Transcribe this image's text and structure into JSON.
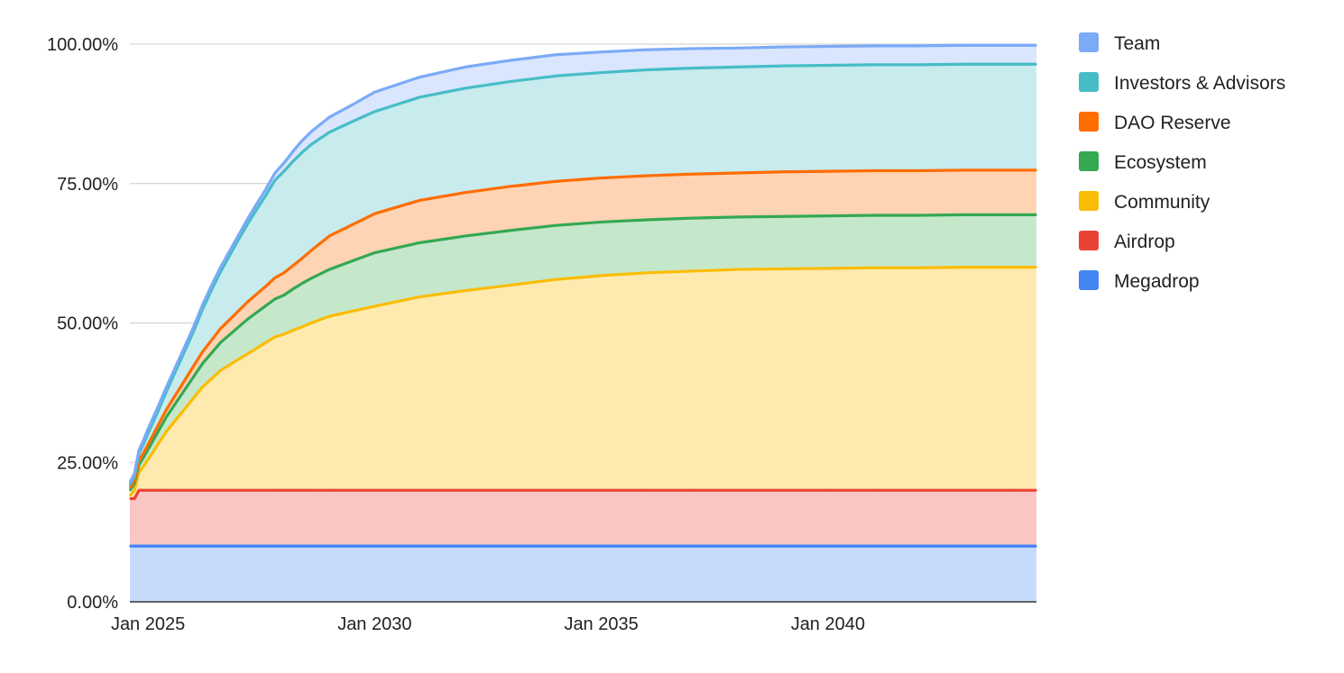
{
  "chart_data": {
    "type": "area",
    "stacked": true,
    "title": "",
    "xlabel": "",
    "ylabel": "",
    "x": [
      2024.6,
      2024.7,
      2024.8,
      2024.9,
      2025.0,
      2025.2,
      2025.4,
      2025.6,
      2025.8,
      2026.0,
      2026.2,
      2026.4,
      2026.6,
      2026.8,
      2027.0,
      2027.2,
      2027.4,
      2027.6,
      2027.8,
      2028.0,
      2028.2,
      2028.4,
      2028.6,
      2028.8,
      2029.0,
      2029.5,
      2030.0,
      2031.0,
      2032.0,
      2033.0,
      2034.0,
      2035.0,
      2036.0,
      2037.0,
      2038.0,
      2039.0,
      2040.0,
      2041.0,
      2042.0,
      2043.0,
      2044.0,
      2044.6
    ],
    "series": [
      {
        "name": "Megadrop",
        "color": "#4285f4",
        "fill": "#c6dafc",
        "values": [
          10,
          10,
          10,
          10,
          10,
          10,
          10,
          10,
          10,
          10,
          10,
          10,
          10,
          10,
          10,
          10,
          10,
          10,
          10,
          10,
          10,
          10,
          10,
          10,
          10,
          10,
          10,
          10,
          10,
          10,
          10,
          10,
          10,
          10,
          10,
          10,
          10,
          10,
          10,
          10,
          10,
          10
        ]
      },
      {
        "name": "Airdrop",
        "color": "#ea4335",
        "fill": "#f9c6c3",
        "values": [
          8.5,
          8.5,
          10,
          10,
          10,
          10,
          10,
          10,
          10,
          10,
          10,
          10,
          10,
          10,
          10,
          10,
          10,
          10,
          10,
          10,
          10,
          10,
          10,
          10,
          10,
          10,
          10,
          10,
          10,
          10,
          10,
          10,
          10,
          10,
          10,
          10,
          10,
          10,
          10,
          10,
          10,
          10
        ]
      },
      {
        "name": "Community",
        "color": "#fbbc04",
        "fill": "#feeaaf",
        "values": [
          0.5,
          1.5,
          3.2,
          4.3,
          5.5,
          8.0,
          10.5,
          12.5,
          14.5,
          16.5,
          18.5,
          20.0,
          21.5,
          22.5,
          23.5,
          24.5,
          25.5,
          26.5,
          27.5,
          28.0,
          28.7,
          29.3,
          30.0,
          30.6,
          31.2,
          32.1,
          33.0,
          34.7,
          35.8,
          36.8,
          37.8,
          38.5,
          39.0,
          39.3,
          39.6,
          39.7,
          39.8,
          39.9,
          39.9,
          40.0,
          40.0,
          40.0
        ]
      },
      {
        "name": "Ecosystem",
        "color": "#34a853",
        "fill": "#c5e8cb",
        "values": [
          1.0,
          1.2,
          1.4,
          1.6,
          1.8,
          2.2,
          2.6,
          3.0,
          3.4,
          3.8,
          4.2,
          4.6,
          5.0,
          5.4,
          5.8,
          6.2,
          6.4,
          6.6,
          6.8,
          7.0,
          7.4,
          7.8,
          8.0,
          8.2,
          8.4,
          9.0,
          9.6,
          9.7,
          9.8,
          9.8,
          9.7,
          9.6,
          9.5,
          9.5,
          9.4,
          9.4,
          9.4,
          9.4,
          9.4,
          9.4,
          9.4,
          9.4
        ]
      },
      {
        "name": "DAO Reserve",
        "color": "#ff6d01",
        "fill": "#ffd4b5",
        "values": [
          0.5,
          0.5,
          0.7,
          0.8,
          0.9,
          1.1,
          1.3,
          1.5,
          1.7,
          1.9,
          2.1,
          2.3,
          2.5,
          2.7,
          2.9,
          3.1,
          3.3,
          3.5,
          3.8,
          4.0,
          4.2,
          4.5,
          5.0,
          5.5,
          6.0,
          6.5,
          7.0,
          7.6,
          7.8,
          7.9,
          7.9,
          7.9,
          7.9,
          7.9,
          7.9,
          8.0,
          8.0,
          8.0,
          8.0,
          8.0,
          8.0,
          8.0
        ]
      },
      {
        "name": "Investors & Advisors",
        "color": "#46bdc6",
        "fill": "#c8ebee",
        "values": [
          0.5,
          0.8,
          1.3,
          1.6,
          2.0,
          2.5,
          3.2,
          4.2,
          5.2,
          6.2,
          7.6,
          9.0,
          10.2,
          11.5,
          12.8,
          14.0,
          15.2,
          16.3,
          17.5,
          18.2,
          18.7,
          19.0,
          19.0,
          18.8,
          18.6,
          18.5,
          18.3,
          18.5,
          18.7,
          18.8,
          18.9,
          18.9,
          19.0,
          19.0,
          19.0,
          19.0,
          19.0,
          19.0,
          19.0,
          19.0,
          19.0,
          19.0
        ]
      },
      {
        "name": "Team",
        "color": "#7baaf7",
        "fill": "#d9e6fd",
        "values": [
          0.4,
          0.5,
          0.6,
          0.7,
          0.8,
          0.8,
          0.8,
          0.8,
          0.8,
          0.8,
          0.8,
          0.8,
          0.8,
          0.8,
          0.8,
          0.9,
          1.0,
          1.1,
          1.3,
          1.5,
          1.8,
          2.1,
          2.3,
          2.5,
          2.7,
          3.0,
          3.5,
          3.6,
          3.8,
          3.8,
          3.8,
          3.7,
          3.6,
          3.5,
          3.4,
          3.4,
          3.4,
          3.4,
          3.4,
          3.4,
          3.4,
          3.4
        ]
      }
    ],
    "legend_order": [
      "Team",
      "Investors & Advisors",
      "DAO Reserve",
      "Ecosystem",
      "Community",
      "Airdrop",
      "Megadrop"
    ],
    "legend_position": "right",
    "xlim": [
      2024.6,
      2044.6
    ],
    "ylim": [
      0,
      100
    ],
    "x_ticks": [
      {
        "value": 2025.0,
        "label": "Jan 2025"
      },
      {
        "value": 2030.0,
        "label": "Jan 2030"
      },
      {
        "value": 2035.0,
        "label": "Jan 2035"
      },
      {
        "value": 2040.0,
        "label": "Jan 2040"
      }
    ],
    "y_ticks": [
      {
        "value": 0,
        "label": "0.00%"
      },
      {
        "value": 25,
        "label": "25.00%"
      },
      {
        "value": 50,
        "label": "50.00%"
      },
      {
        "value": 75,
        "label": "75.00%"
      },
      {
        "value": 100,
        "label": "100.00%"
      }
    ],
    "grid": true
  }
}
